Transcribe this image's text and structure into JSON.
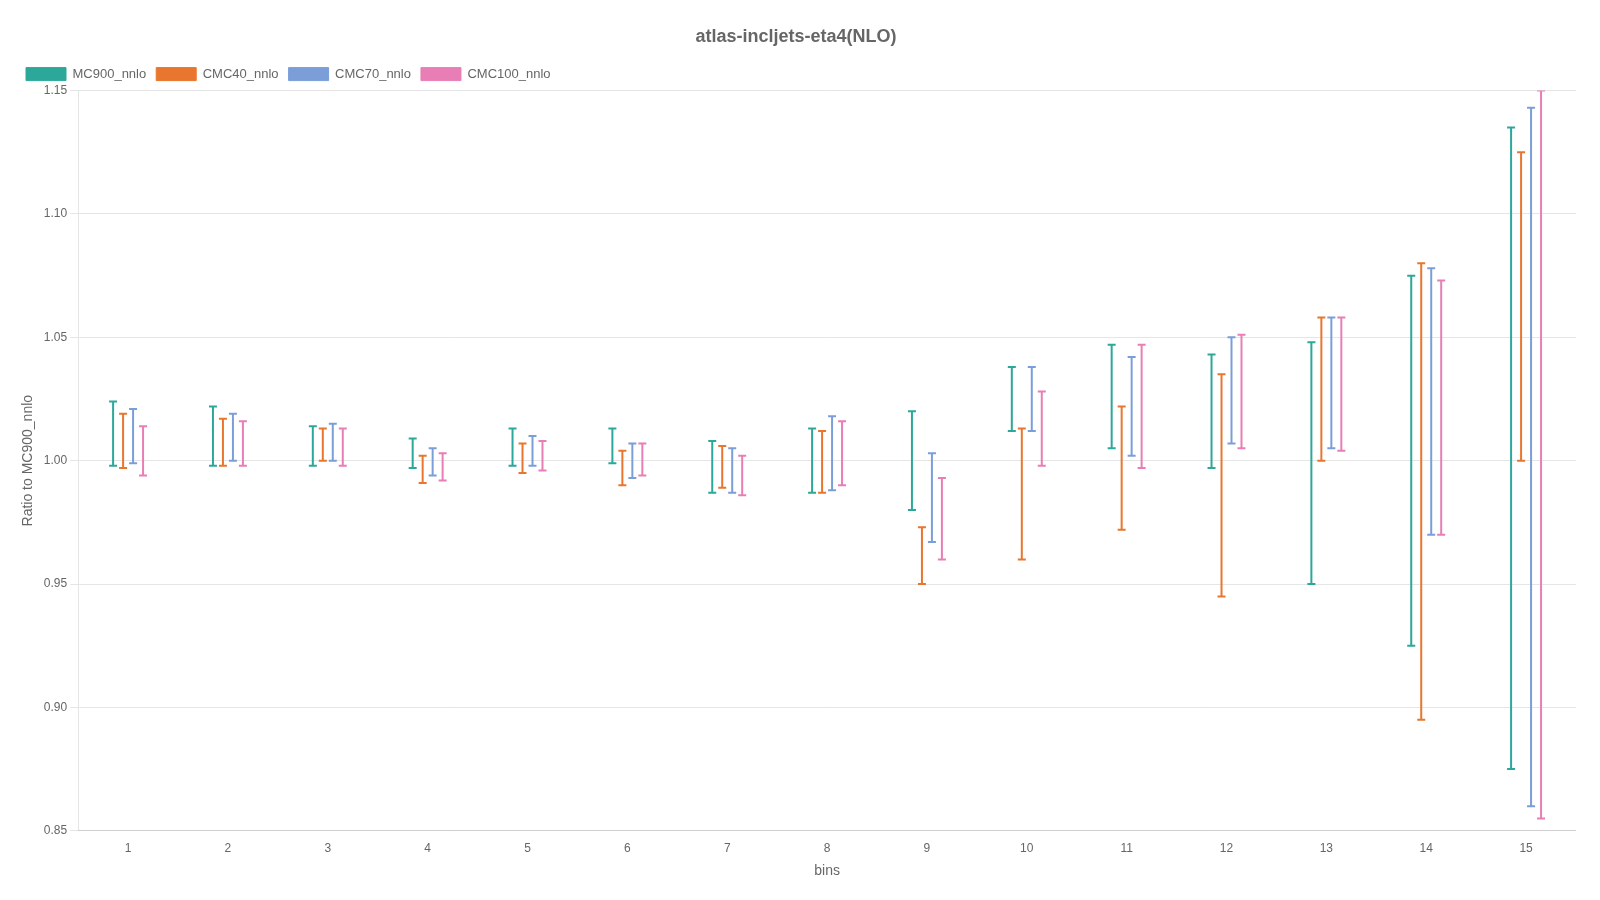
{
  "chart_data": {
    "type": "errorbar",
    "title": "atlas-incljets-eta4(NLO)",
    "xlabel": "bins",
    "ylabel": "Ratio to MC900_nnlo",
    "x": [
      1,
      2,
      3,
      4,
      5,
      6,
      7,
      8,
      9,
      10,
      11,
      12,
      13,
      14,
      15
    ],
    "series": [
      {
        "name": "MC900_nnlo",
        "color": "#2ca89a",
        "values": [
          1.02,
          1.016,
          1.01,
          1.005,
          1.01,
          1.009,
          1.0,
          1.005,
          1.008,
          1.03,
          1.035,
          1.025,
          1.03,
          1.07,
          1.13
        ],
        "err_lo": [
          0.022,
          0.018,
          0.012,
          0.008,
          0.012,
          0.01,
          0.013,
          0.018,
          0.028,
          0.018,
          0.03,
          0.028,
          0.08,
          0.145,
          0.255
        ],
        "err_hi": [
          0.004,
          0.006,
          0.004,
          0.004,
          0.003,
          0.004,
          0.008,
          0.008,
          0.012,
          0.008,
          0.012,
          0.018,
          0.018,
          0.005,
          0.005
        ]
      },
      {
        "name": "CMC40_nnlo",
        "color": "#e8762e",
        "values": [
          1.015,
          1.013,
          1.01,
          0.999,
          1.004,
          1.0,
          0.999,
          1.005,
          0.965,
          1.005,
          1.01,
          0.975,
          1.05,
          0.92,
          1.08
        ],
        "err_lo": [
          0.018,
          0.015,
          0.01,
          0.008,
          0.009,
          0.01,
          0.01,
          0.018,
          0.015,
          0.045,
          0.038,
          0.03,
          0.05,
          0.025,
          0.08
        ],
        "err_hi": [
          0.004,
          0.004,
          0.003,
          0.003,
          0.003,
          0.004,
          0.007,
          0.007,
          0.008,
          0.008,
          0.012,
          0.06,
          0.008,
          0.16,
          0.045
        ]
      },
      {
        "name": "CMC70_nnlo",
        "color": "#7b9ed9",
        "values": [
          1.017,
          1.015,
          1.012,
          1.002,
          1.007,
          1.003,
          1.0,
          1.01,
          0.995,
          1.03,
          1.03,
          1.045,
          1.05,
          1.07,
          1.135
        ],
        "err_lo": [
          0.018,
          0.015,
          0.012,
          0.008,
          0.009,
          0.01,
          0.013,
          0.022,
          0.028,
          0.018,
          0.028,
          0.038,
          0.045,
          0.1,
          0.275
        ],
        "err_hi": [
          0.004,
          0.004,
          0.003,
          0.003,
          0.003,
          0.004,
          0.005,
          0.008,
          0.008,
          0.008,
          0.012,
          0.005,
          0.008,
          0.008,
          0.008
        ]
      },
      {
        "name": "CMC100_nnlo",
        "color": "#e87eb5",
        "values": [
          1.01,
          1.012,
          1.01,
          1.0,
          1.005,
          1.003,
          0.997,
          1.008,
          0.985,
          1.02,
          1.035,
          1.043,
          1.052,
          1.065,
          1.145
        ],
        "err_lo": [
          0.016,
          0.014,
          0.012,
          0.008,
          0.009,
          0.009,
          0.011,
          0.018,
          0.025,
          0.022,
          0.038,
          0.038,
          0.048,
          0.095,
          0.29
        ],
        "err_hi": [
          0.004,
          0.004,
          0.003,
          0.003,
          0.003,
          0.004,
          0.005,
          0.008,
          0.008,
          0.008,
          0.012,
          0.008,
          0.006,
          0.008,
          0.005
        ]
      }
    ],
    "xlim": [
      0.5,
      15.5
    ],
    "xticks": [
      1,
      2,
      3,
      4,
      5,
      6,
      7,
      8,
      9,
      10,
      11,
      12,
      13,
      14,
      15
    ],
    "ylim": [
      0.85,
      1.15
    ],
    "yticks": [
      0.85,
      {
        "value": 0.9,
        "label": "0.90"
      },
      0.95,
      {
        "value": 1.0,
        "label": "1.00"
      },
      1.05,
      {
        "value": 1.1,
        "label": "1.10"
      },
      1.15
    ],
    "grid": "y",
    "legend": "upper left"
  }
}
